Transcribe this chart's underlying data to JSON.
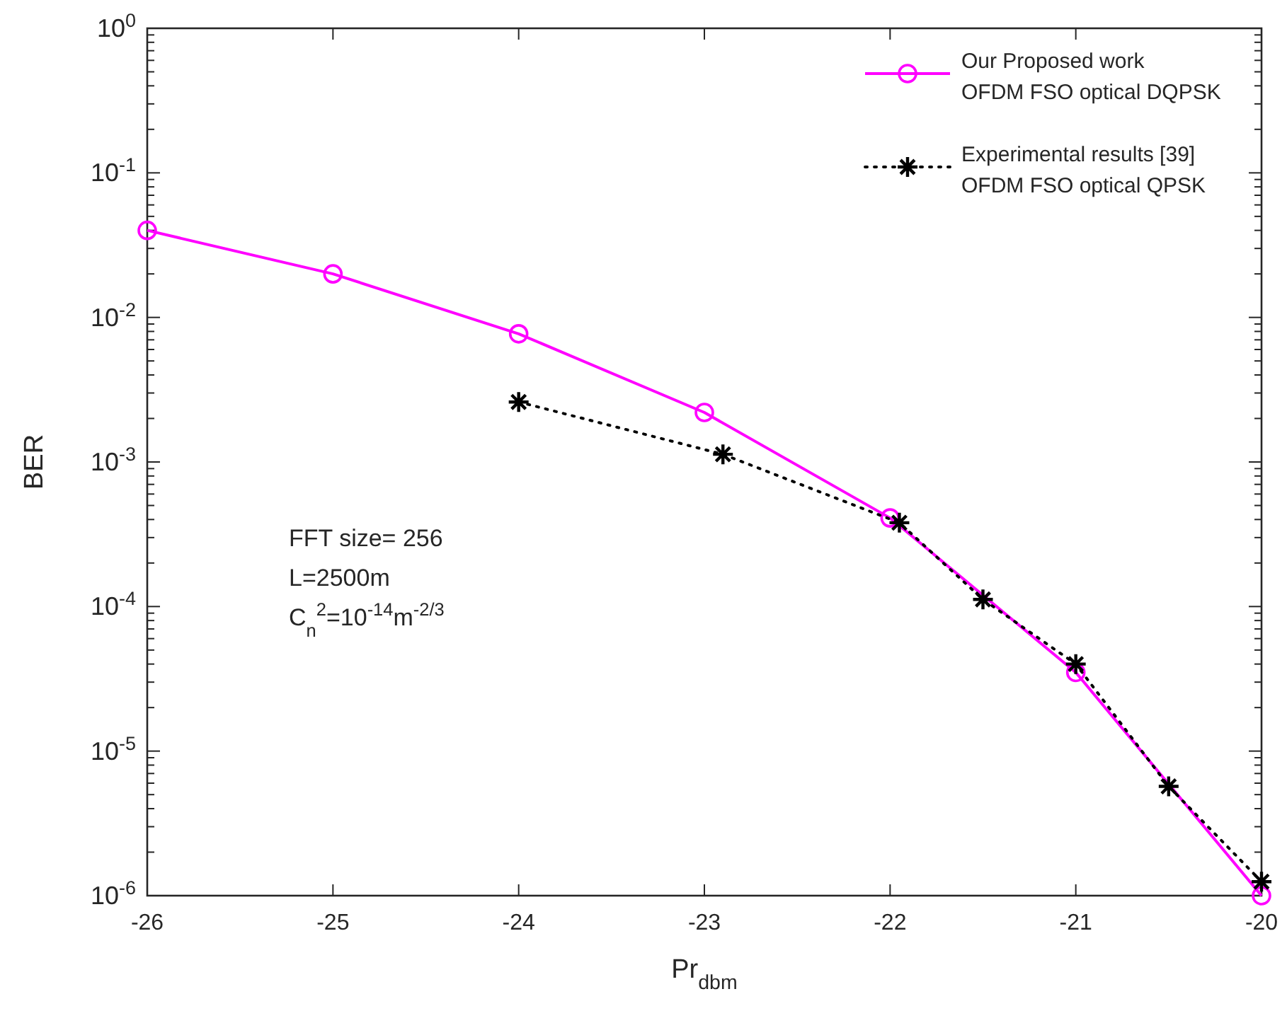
{
  "chart_data": {
    "type": "line",
    "xlabel": "Pr$_{dbm}$",
    "ylabel": "BER",
    "log": "y",
    "legend": "top right",
    "grid": false,
    "xlim": [
      -26,
      -20
    ],
    "xticks": [
      -26,
      -25,
      -24,
      -23,
      -22,
      -21,
      -20
    ],
    "ylim": [
      1e-06,
      1
    ],
    "yticks": [
      {
        "value": 1e-06,
        "label": "10$^{-6}$"
      },
      {
        "value": 2e-06,
        "label": null
      },
      {
        "value": 3e-06,
        "label": null
      },
      {
        "value": 4e-06,
        "label": null
      },
      {
        "value": 5e-06,
        "label": null
      },
      {
        "value": 6e-06,
        "label": null
      },
      {
        "value": 7e-06,
        "label": null
      },
      {
        "value": 8e-06,
        "label": null
      },
      {
        "value": 9e-06,
        "label": null
      },
      {
        "value": 1e-05,
        "label": "10$^{-5}$"
      },
      {
        "value": 2e-05,
        "label": null
      },
      {
        "value": 3e-05,
        "label": null
      },
      {
        "value": 4e-05,
        "label": null
      },
      {
        "value": 5e-05,
        "label": null
      },
      {
        "value": 6e-05,
        "label": null
      },
      {
        "value": 7e-05,
        "label": null
      },
      {
        "value": 8e-05,
        "label": null
      },
      {
        "value": 9e-05,
        "label": null
      },
      {
        "value": 0.0001,
        "label": "10$^{-4}$"
      },
      {
        "value": 0.0002,
        "label": null
      },
      {
        "value": 0.0003,
        "label": null
      },
      {
        "value": 0.0004,
        "label": null
      },
      {
        "value": 0.0005,
        "label": null
      },
      {
        "value": 0.0006,
        "label": null
      },
      {
        "value": 0.0007,
        "label": null
      },
      {
        "value": 0.0008,
        "label": null
      },
      {
        "value": 0.0009,
        "label": null
      },
      {
        "value": 0.001,
        "label": "10$^{-3}$"
      },
      {
        "value": 0.002,
        "label": null
      },
      {
        "value": 0.003,
        "label": null
      },
      {
        "value": 0.004,
        "label": null
      },
      {
        "value": 0.005,
        "label": null
      },
      {
        "value": 0.006,
        "label": null
      },
      {
        "value": 0.007,
        "label": null
      },
      {
        "value": 0.008,
        "label": null
      },
      {
        "value": 0.009,
        "label": null
      },
      {
        "value": 0.01,
        "label": "10$^{-2}$"
      },
      {
        "value": 0.02,
        "label": null
      },
      {
        "value": 0.03,
        "label": null
      },
      {
        "value": 0.04,
        "label": null
      },
      {
        "value": 0.05,
        "label": null
      },
      {
        "value": 0.06,
        "label": null
      },
      {
        "value": 0.07,
        "label": null
      },
      {
        "value": 0.08,
        "label": null
      },
      {
        "value": 0.09,
        "label": null
      },
      {
        "value": 0.1,
        "label": "10$^{-1}$"
      },
      {
        "value": 0.2,
        "label": null
      },
      {
        "value": 0.3,
        "label": null
      },
      {
        "value": 0.4,
        "label": null
      },
      {
        "value": 0.5,
        "label": null
      },
      {
        "value": 0.6,
        "label": null
      },
      {
        "value": 0.7,
        "label": null
      },
      {
        "value": 0.8,
        "label": null
      },
      {
        "value": 0.9,
        "label": null
      },
      {
        "value": 1,
        "label": "10$^{0}$"
      }
    ],
    "series": [
      {
        "name": "Our Proposed work\nOFDM FSO optical DQPSK",
        "color": "#ff00ff",
        "marker": "circle",
        "line_style": "solid",
        "x": [
          -26,
          -25,
          -24,
          -23,
          -22,
          -21,
          -20
        ],
        "values": [
          0.04,
          0.02,
          0.0077,
          0.0022,
          0.00041,
          3.5e-05,
          1e-06
        ]
      },
      {
        "name": "Experimental results [39]\nOFDM FSO optical QPSK",
        "color": "#000000",
        "marker": "cross",
        "line_style": "dotted",
        "x": [
          -24,
          -22.9,
          -21.95,
          -21.5,
          -21,
          -20.5,
          -20
        ],
        "values": [
          0.0026,
          0.00113,
          0.00038,
          0.000112,
          4e-05,
          5.7e-06,
          1.25e-06
        ]
      }
    ],
    "annotations": [
      {
        "text": "FFT size= 256\nL=2500m\nC$_{n}$$^{2}$=10$^{-14}$m$^{-2/3}$"
      }
    ]
  }
}
